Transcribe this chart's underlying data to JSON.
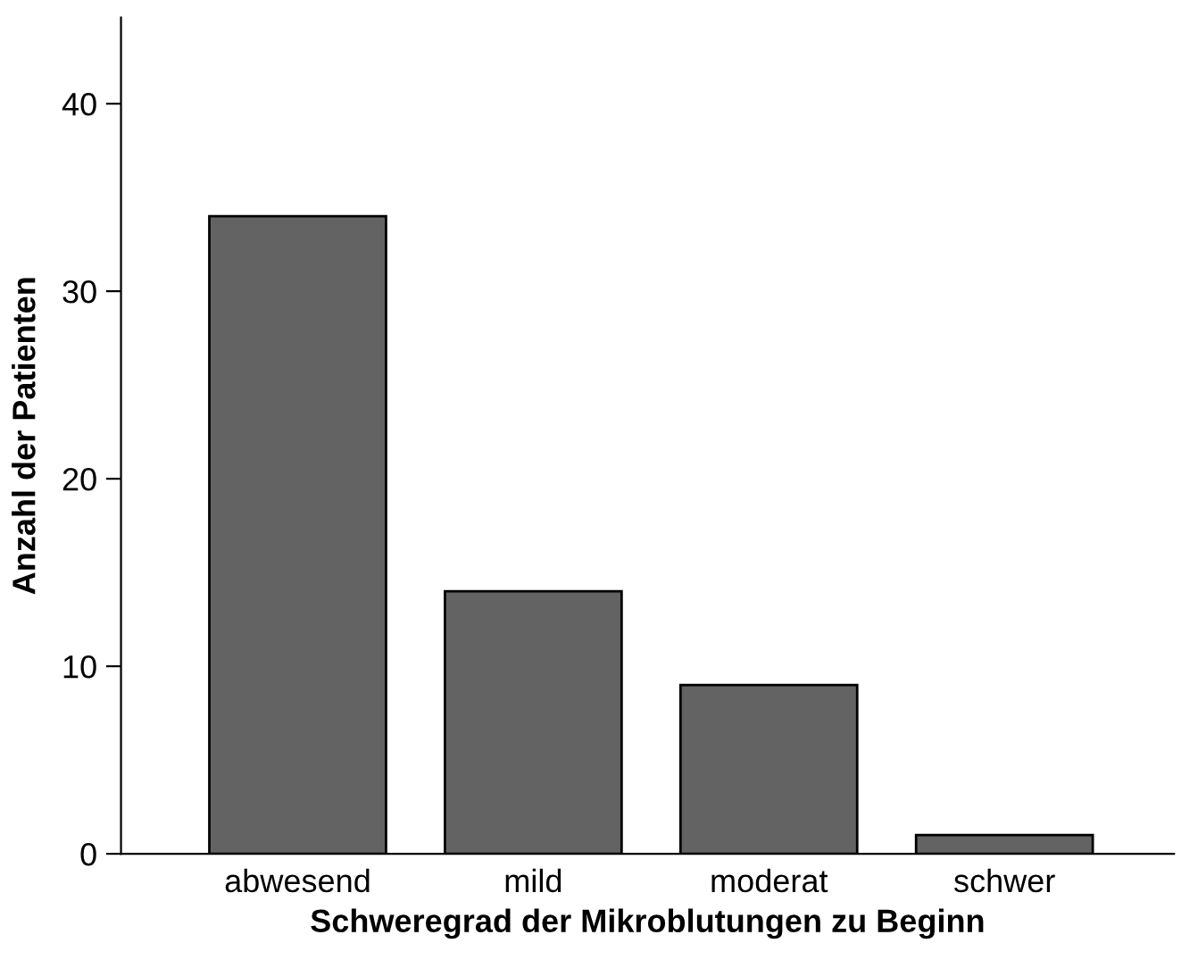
{
  "chart_data": {
    "type": "bar",
    "xlabel": "Schweregrad der Mikroblutungen zu Beginn",
    "ylabel": "Anzahl der Patienten",
    "categories": [
      "abwesend",
      "mild",
      "moderat",
      "schwer"
    ],
    "values": [
      34,
      14,
      9,
      1
    ],
    "color": "#636363",
    "ylim": [
      0,
      44.6
    ],
    "yticks": [
      0,
      10,
      20,
      30,
      40
    ],
    "grid": false,
    "legend": false
  }
}
